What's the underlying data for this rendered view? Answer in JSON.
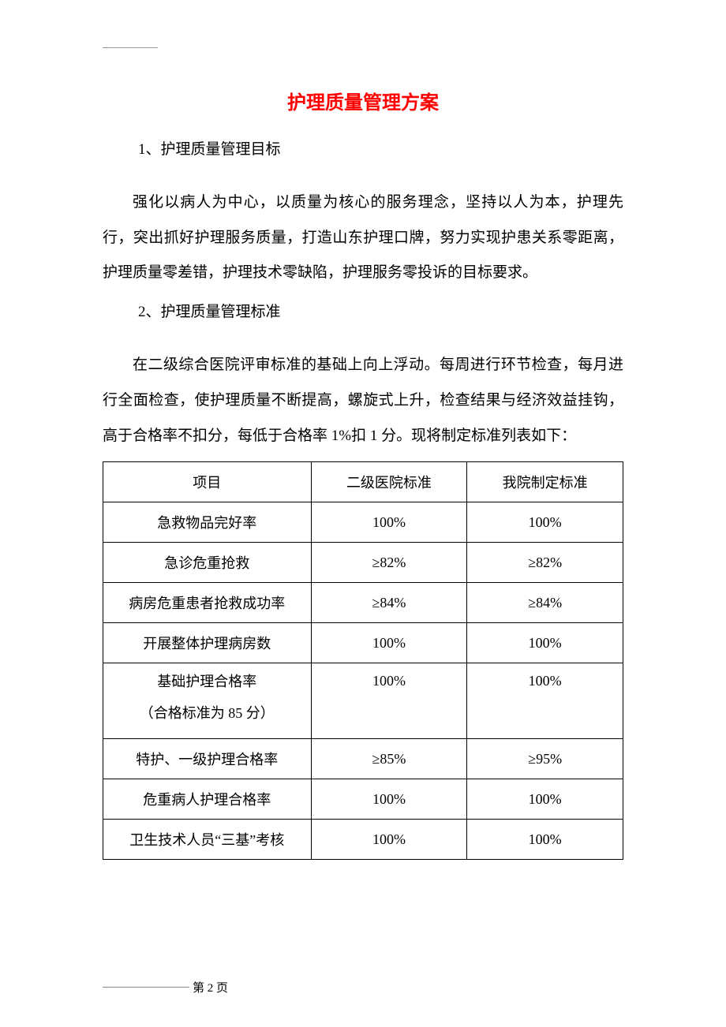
{
  "document": {
    "title": "护理质量管理方案",
    "title_color": "#ff0000",
    "section1": {
      "heading": "1、护理质量管理目标",
      "paragraph": "强化以病人为中心，以质量为核心的服务理念，坚持以人为本，护理先行，突出抓好护理服务质量，打造山东护理口牌，努力实现护患关系零距离，护理质量零差错，护理技术零缺陷，护理服务零投诉的目标要求。"
    },
    "section2": {
      "heading": "2、护理质量管理标准",
      "paragraph": "在二级综合医院评审标准的基础上向上浮动。每周进行环节检查，每月进行全面检查，使护理质量不断提高，螺旋式上升，检查结果与经济效益挂钩，高于合格率不扣分，每低于合格率 1%扣 1 分。现将制定标准列表如下："
    },
    "table": {
      "columns": [
        "项目",
        "二级医院标准",
        "我院制定标准"
      ],
      "col_widths": [
        "40%",
        "30%",
        "30%"
      ],
      "rows": [
        {
          "item": "急救物品完好率",
          "std1": "100%",
          "std2": "100%"
        },
        {
          "item": "急诊危重抢救",
          "std1": "≥82%",
          "std2": "≥82%"
        },
        {
          "item": "病房危重患者抢救成功率",
          "std1": "≥84%",
          "std2": "≥84%"
        },
        {
          "item": "开展整体护理病房数",
          "std1": "100%",
          "std2": "100%"
        },
        {
          "item": "基础护理合格率\n（合格标准为 85 分）",
          "std1": "100%",
          "std2": "100%",
          "tall": true
        },
        {
          "item": "特护、一级护理合格率",
          "std1": "≥85%",
          "std2": "≥95%"
        },
        {
          "item": "危重病人护理合格率",
          "std1": "100%",
          "std2": "100%"
        },
        {
          "item": "卫生技术人员“三基”考核",
          "std1": "100%",
          "std2": "100%"
        }
      ]
    },
    "footer": {
      "page_label": "第 2 页"
    }
  }
}
